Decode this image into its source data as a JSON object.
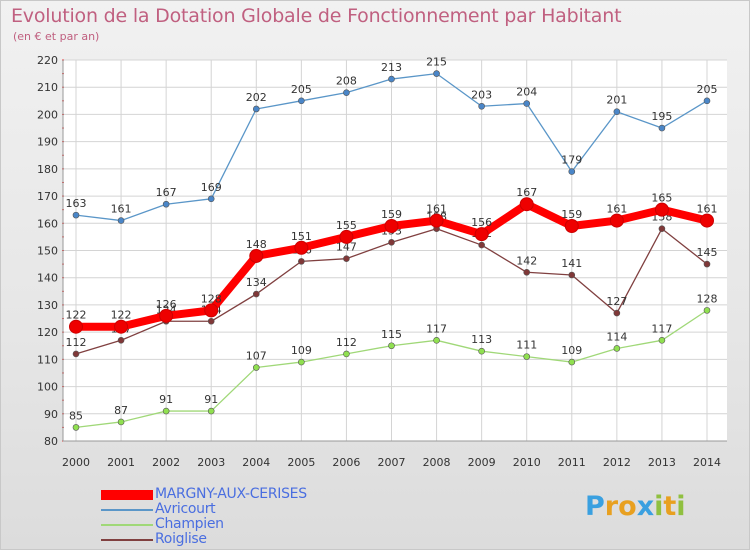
{
  "chart_data": {
    "type": "line",
    "title": "Evolution de la Dotation Globale de Fonctionnement par Habitant",
    "subtitle": "(en € et par an)",
    "xlabel": "",
    "ylabel": "",
    "ylim": [
      80,
      220
    ],
    "yticks": [
      80,
      90,
      100,
      110,
      120,
      130,
      140,
      150,
      160,
      170,
      180,
      190,
      200,
      210,
      220
    ],
    "categories": [
      "2000",
      "2001",
      "2002",
      "2003",
      "2004",
      "2005",
      "2006",
      "2007",
      "2008",
      "2009",
      "2010",
      "2011",
      "2012",
      "2013",
      "2014"
    ],
    "grid": true,
    "legend_position": "bottom-left",
    "series": [
      {
        "name": "Avricourt",
        "color": "#5a96c8",
        "point_color": "#4a86c8",
        "values": [
          163,
          161,
          167,
          169,
          202,
          205,
          208,
          213,
          215,
          203,
          204,
          179,
          201,
          195,
          205
        ]
      },
      {
        "name": "Champien",
        "color": "#a0d878",
        "point_color": "#90e050",
        "values": [
          85,
          87,
          91,
          91,
          107,
          109,
          112,
          115,
          117,
          113,
          111,
          109,
          114,
          117,
          128
        ]
      },
      {
        "name": "Roiglise",
        "color": "#804040",
        "point_color": "#803838",
        "values": [
          112,
          117,
          124,
          124,
          134,
          146,
          147,
          153,
          158,
          152,
          142,
          141,
          127,
          158,
          145
        ]
      },
      {
        "name": "MARGNY-AUX-CERISES",
        "color": "#ff0000",
        "point_color": "#ee0000",
        "values": [
          122,
          122,
          126,
          128,
          148,
          151,
          155,
          159,
          161,
          156,
          167,
          159,
          161,
          165,
          161
        ]
      }
    ]
  },
  "legend": {
    "items": [
      {
        "name": "MARGNY-AUX-CERISES",
        "color": "#ff0000",
        "text_color": "#4a6ee0"
      },
      {
        "name": "Avricourt",
        "color": "#5a96c8",
        "text_color": "#4a6ee0"
      },
      {
        "name": "Champien",
        "color": "#a0d878",
        "text_color": "#4a6ee0"
      },
      {
        "name": "Roiglise",
        "color": "#804040",
        "text_color": "#4a6ee0"
      }
    ]
  },
  "logo": {
    "letters": [
      "P",
      "r",
      "o",
      "x",
      "i",
      "t",
      "i"
    ],
    "colors": [
      "#3aa0e0",
      "#e8a020",
      "#e8a020",
      "#3aa0e0",
      "#90c040",
      "#e8a020",
      "#90c040"
    ]
  }
}
